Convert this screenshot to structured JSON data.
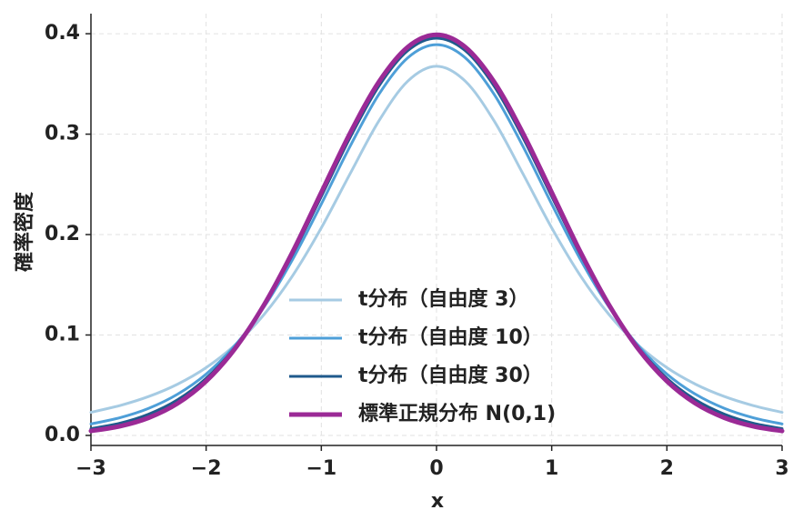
{
  "chart_data": {
    "type": "line",
    "xlabel": "x",
    "ylabel": "確率密度",
    "x": [
      -3,
      -2.75,
      -2.5,
      -2.25,
      -2,
      -1.75,
      -1.5,
      -1.25,
      -1,
      -0.75,
      -0.5,
      -0.25,
      0,
      0.25,
      0.5,
      0.75,
      1,
      1.25,
      1.5,
      1.75,
      2,
      2.25,
      2.5,
      2.75,
      3
    ],
    "series": [
      {
        "name": "t分布（自由度 3）",
        "color": "#a6cbe3",
        "width": 3,
        "values": [
          0.023,
          0.0297,
          0.0387,
          0.0509,
          0.0675,
          0.09,
          0.12,
          0.1589,
          0.2067,
          0.2606,
          0.3132,
          0.3527,
          0.3676,
          0.3527,
          0.3132,
          0.2606,
          0.2067,
          0.1589,
          0.12,
          0.09,
          0.0675,
          0.0509,
          0.0387,
          0.0297,
          0.023
        ]
      },
      {
        "name": "t分布（自由度 10）",
        "color": "#4e9fd8",
        "width": 3,
        "values": [
          0.0114,
          0.0176,
          0.0269,
          0.0409,
          0.0611,
          0.0895,
          0.1274,
          0.1751,
          0.2304,
          0.288,
          0.3397,
          0.376,
          0.3891,
          0.376,
          0.3397,
          0.288,
          0.2304,
          0.1751,
          0.1274,
          0.0895,
          0.0611,
          0.0409,
          0.0269,
          0.0176,
          0.0114
        ]
      },
      {
        "name": "t分布（自由度 30）",
        "color": "#1f5a8c",
        "width": 3,
        "values": [
          0.0068,
          0.0121,
          0.0211,
          0.0353,
          0.0569,
          0.0877,
          0.129,
          0.1801,
          0.238,
          0.2966,
          0.3479,
          0.3831,
          0.3956,
          0.3831,
          0.3479,
          0.2966,
          0.238,
          0.1801,
          0.129,
          0.0877,
          0.0569,
          0.0353,
          0.0211,
          0.0121,
          0.0068
        ]
      },
      {
        "name": "標準正規分布 N(0,1)",
        "color": "#9b2a96",
        "width": 5,
        "values": [
          0.0044,
          0.0091,
          0.0175,
          0.0317,
          0.054,
          0.0863,
          0.1295,
          0.1826,
          0.242,
          0.3011,
          0.3521,
          0.3867,
          0.3989,
          0.3867,
          0.3521,
          0.3011,
          0.242,
          0.1826,
          0.1295,
          0.0863,
          0.054,
          0.0317,
          0.0175,
          0.0091,
          0.0044
        ]
      }
    ],
    "xlim": [
      -3,
      3
    ],
    "ylim": [
      -0.01,
      0.42
    ],
    "xticks": [
      {
        "value": -3,
        "label": "−3"
      },
      {
        "value": -2,
        "label": "−2"
      },
      {
        "value": -1,
        "label": "−1"
      },
      0,
      1,
      2,
      3
    ],
    "yticks": [
      {
        "value": 0,
        "label": "0.0"
      },
      0.1,
      0.2,
      0.3,
      0.4
    ],
    "grid": true,
    "legend": "lower center"
  }
}
